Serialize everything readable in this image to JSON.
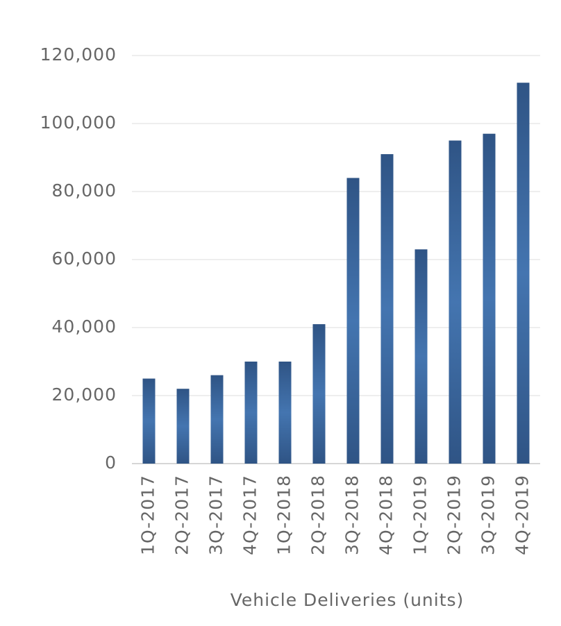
{
  "chart_data": {
    "type": "bar",
    "x_label": "Vehicle Deliveries (units)",
    "categories": [
      "1Q-2017",
      "2Q-2017",
      "3Q-2017",
      "4Q-2017",
      "1Q-2018",
      "2Q-2018",
      "3Q-2018",
      "4Q-2018",
      "1Q-2019",
      "2Q-2019",
      "3Q-2019",
      "4Q-2019"
    ],
    "values": [
      25000,
      22000,
      26000,
      30000,
      30000,
      41000,
      84000,
      91000,
      63000,
      95000,
      97000,
      112000
    ],
    "color": "#4475b0",
    "edge_color": "#2f5485",
    "ylim": [
      0,
      120000
    ],
    "yticks": [
      0,
      {
        "value": 20000,
        "label": "20,000"
      },
      {
        "value": 40000,
        "label": "40,000"
      },
      {
        "value": 60000,
        "label": "60,000"
      },
      {
        "value": 80000,
        "label": "80,000"
      },
      {
        "value": 100000,
        "label": "100,000"
      },
      {
        "value": 120000,
        "label": "120,000"
      }
    ],
    "grid": true
  }
}
